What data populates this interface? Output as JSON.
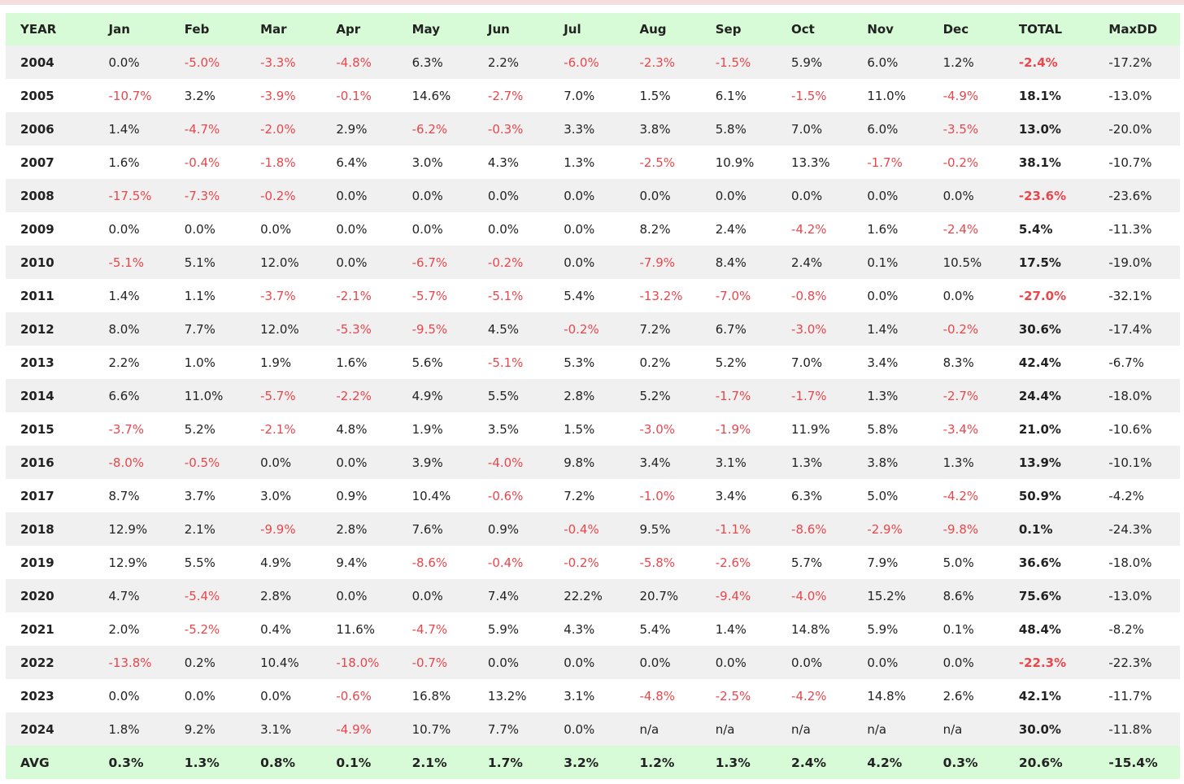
{
  "table": {
    "headers": [
      "YEAR",
      "Jan",
      "Feb",
      "Mar",
      "Apr",
      "May",
      "Jun",
      "Jul",
      "Aug",
      "Sep",
      "Oct",
      "Nov",
      "Dec",
      "TOTAL",
      "MaxDD"
    ],
    "rows": [
      [
        "2004",
        "0.0%",
        "-5.0%",
        "-3.3%",
        "-4.8%",
        "6.3%",
        "2.2%",
        "-6.0%",
        "-2.3%",
        "-1.5%",
        "5.9%",
        "6.0%",
        "1.2%",
        "-2.4%",
        "-17.2%"
      ],
      [
        "2005",
        "-10.7%",
        "3.2%",
        "-3.9%",
        "-0.1%",
        "14.6%",
        "-2.7%",
        "7.0%",
        "1.5%",
        "6.1%",
        "-1.5%",
        "11.0%",
        "-4.9%",
        "18.1%",
        "-13.0%"
      ],
      [
        "2006",
        "1.4%",
        "-4.7%",
        "-2.0%",
        "2.9%",
        "-6.2%",
        "-0.3%",
        "3.3%",
        "3.8%",
        "5.8%",
        "7.0%",
        "6.0%",
        "-3.5%",
        "13.0%",
        "-20.0%"
      ],
      [
        "2007",
        "1.6%",
        "-0.4%",
        "-1.8%",
        "6.4%",
        "3.0%",
        "4.3%",
        "1.3%",
        "-2.5%",
        "10.9%",
        "13.3%",
        "-1.7%",
        "-0.2%",
        "38.1%",
        "-10.7%"
      ],
      [
        "2008",
        "-17.5%",
        "-7.3%",
        "-0.2%",
        "0.0%",
        "0.0%",
        "0.0%",
        "0.0%",
        "0.0%",
        "0.0%",
        "0.0%",
        "0.0%",
        "0.0%",
        "-23.6%",
        "-23.6%"
      ],
      [
        "2009",
        "0.0%",
        "0.0%",
        "0.0%",
        "0.0%",
        "0.0%",
        "0.0%",
        "0.0%",
        "8.2%",
        "2.4%",
        "-4.2%",
        "1.6%",
        "-2.4%",
        "5.4%",
        "-11.3%"
      ],
      [
        "2010",
        "-5.1%",
        "5.1%",
        "12.0%",
        "0.0%",
        "-6.7%",
        "-0.2%",
        "0.0%",
        "-7.9%",
        "8.4%",
        "2.4%",
        "0.1%",
        "10.5%",
        "17.5%",
        "-19.0%"
      ],
      [
        "2011",
        "1.4%",
        "1.1%",
        "-3.7%",
        "-2.1%",
        "-5.7%",
        "-5.1%",
        "5.4%",
        "-13.2%",
        "-7.0%",
        "-0.8%",
        "0.0%",
        "0.0%",
        "-27.0%",
        "-32.1%"
      ],
      [
        "2012",
        "8.0%",
        "7.7%",
        "12.0%",
        "-5.3%",
        "-9.5%",
        "4.5%",
        "-0.2%",
        "7.2%",
        "6.7%",
        "-3.0%",
        "1.4%",
        "-0.2%",
        "30.6%",
        "-17.4%"
      ],
      [
        "2013",
        "2.2%",
        "1.0%",
        "1.9%",
        "1.6%",
        "5.6%",
        "-5.1%",
        "5.3%",
        "0.2%",
        "5.2%",
        "7.0%",
        "3.4%",
        "8.3%",
        "42.4%",
        "-6.7%"
      ],
      [
        "2014",
        "6.6%",
        "11.0%",
        "-5.7%",
        "-2.2%",
        "4.9%",
        "5.5%",
        "2.8%",
        "5.2%",
        "-1.7%",
        "-1.7%",
        "1.3%",
        "-2.7%",
        "24.4%",
        "-18.0%"
      ],
      [
        "2015",
        "-3.7%",
        "5.2%",
        "-2.1%",
        "4.8%",
        "1.9%",
        "3.5%",
        "1.5%",
        "-3.0%",
        "-1.9%",
        "11.9%",
        "5.8%",
        "-3.4%",
        "21.0%",
        "-10.6%"
      ],
      [
        "2016",
        "-8.0%",
        "-0.5%",
        "0.0%",
        "0.0%",
        "3.9%",
        "-4.0%",
        "9.8%",
        "3.4%",
        "3.1%",
        "1.3%",
        "3.8%",
        "1.3%",
        "13.9%",
        "-10.1%"
      ],
      [
        "2017",
        "8.7%",
        "3.7%",
        "3.0%",
        "0.9%",
        "10.4%",
        "-0.6%",
        "7.2%",
        "-1.0%",
        "3.4%",
        "6.3%",
        "5.0%",
        "-4.2%",
        "50.9%",
        "-4.2%"
      ],
      [
        "2018",
        "12.9%",
        "2.1%",
        "-9.9%",
        "2.8%",
        "7.6%",
        "0.9%",
        "-0.4%",
        "9.5%",
        "-1.1%",
        "-8.6%",
        "-2.9%",
        "-9.8%",
        "0.1%",
        "-24.3%"
      ],
      [
        "2019",
        "12.9%",
        "5.5%",
        "4.9%",
        "9.4%",
        "-8.6%",
        "-0.4%",
        "-0.2%",
        "-5.8%",
        "-2.6%",
        "5.7%",
        "7.9%",
        "5.0%",
        "36.6%",
        "-18.0%"
      ],
      [
        "2020",
        "4.7%",
        "-5.4%",
        "2.8%",
        "0.0%",
        "0.0%",
        "7.4%",
        "22.2%",
        "20.7%",
        "-9.4%",
        "-4.0%",
        "15.2%",
        "8.6%",
        "75.6%",
        "-13.0%"
      ],
      [
        "2021",
        "2.0%",
        "-5.2%",
        "0.4%",
        "11.6%",
        "-4.7%",
        "5.9%",
        "4.3%",
        "5.4%",
        "1.4%",
        "14.8%",
        "5.9%",
        "0.1%",
        "48.4%",
        "-8.2%"
      ],
      [
        "2022",
        "-13.8%",
        "0.2%",
        "10.4%",
        "-18.0%",
        "-0.7%",
        "0.0%",
        "0.0%",
        "0.0%",
        "0.0%",
        "0.0%",
        "0.0%",
        "0.0%",
        "-22.3%",
        "-22.3%"
      ],
      [
        "2023",
        "0.0%",
        "0.0%",
        "0.0%",
        "-0.6%",
        "16.8%",
        "13.2%",
        "3.1%",
        "-4.8%",
        "-2.5%",
        "-4.2%",
        "14.8%",
        "2.6%",
        "42.1%",
        "-11.7%"
      ],
      [
        "2024",
        "1.8%",
        "9.2%",
        "3.1%",
        "-4.9%",
        "10.7%",
        "7.7%",
        "0.0%",
        "n/a",
        "n/a",
        "n/a",
        "n/a",
        "n/a",
        "30.0%",
        "-11.8%"
      ]
    ],
    "footer": [
      "AVG",
      "0.3%",
      "1.3%",
      "0.8%",
      "0.1%",
      "2.1%",
      "1.7%",
      "3.2%",
      "1.2%",
      "1.3%",
      "2.4%",
      "4.2%",
      "0.3%",
      "20.6%",
      "-15.4%"
    ]
  },
  "colors": {
    "header_bg": "#d7fbd7",
    "negative_text": "#e8474c",
    "positive_text": "#222222",
    "row_alt_bg": "#f0f0f0",
    "top_strip": "#f7dede"
  }
}
